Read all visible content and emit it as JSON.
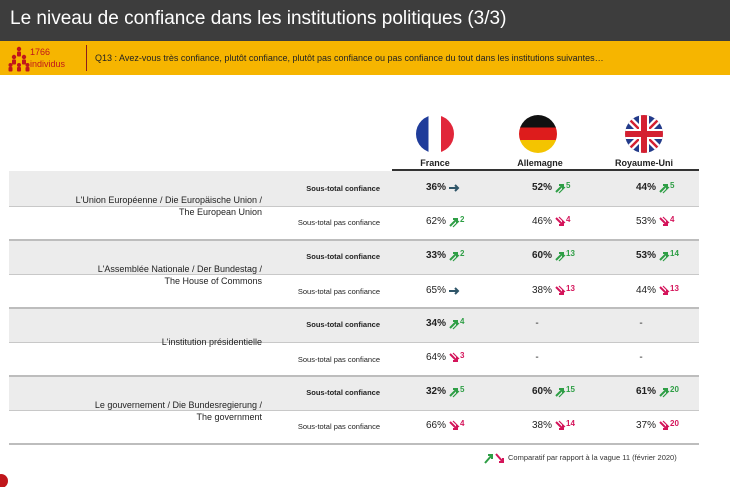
{
  "header": {
    "title": "Le niveau de confiance dans les institutions politiques (3/3)",
    "base_count": "1766",
    "base_unit": "individus",
    "question": "Q13 : Avez-vous très confiance, plutôt confiance, plutôt pas confiance ou pas confiance du tout dans les institutions suivantes…"
  },
  "colors": {
    "title_bar": "#3d3d3d",
    "question_bar": "#f6b500",
    "up_arrow": "#2e9e45",
    "down_arrow": "#d4145a",
    "stable_arrow": "#2f5568",
    "group_background": "#ececec"
  },
  "countries": [
    {
      "name": "France",
      "flag_icon": "france-flag-icon"
    },
    {
      "name": "Allemagne",
      "flag_icon": "germany-flag-icon"
    },
    {
      "name": "Royaume-Uni",
      "flag_icon": "uk-flag-icon"
    }
  ],
  "footnote": "Comparatif par rapport à la vague 11 (février 2020)",
  "chart_data": {
    "type": "table",
    "columns": [
      "France",
      "Allemagne",
      "Royaume-Uni"
    ],
    "measures": [
      "Sous-total confiance",
      "Sous-total pas confiance"
    ],
    "groups": [
      {
        "institution": [
          "L'Union Européenne / Die Europäische Union /",
          "The European Union"
        ],
        "rows": [
          {
            "measure": "Sous-total confiance",
            "cells": [
              {
                "value": "36%",
                "trend": "stable",
                "delta": ""
              },
              {
                "value": "52%",
                "trend": "up",
                "delta": "5"
              },
              {
                "value": "44%",
                "trend": "up",
                "delta": "5"
              }
            ]
          },
          {
            "measure": "Sous-total pas confiance",
            "cells": [
              {
                "value": "62%",
                "trend": "up",
                "delta": "2"
              },
              {
                "value": "46%",
                "trend": "down",
                "delta": "4"
              },
              {
                "value": "53%",
                "trend": "down",
                "delta": "4"
              }
            ]
          }
        ]
      },
      {
        "institution": [
          "L'Assemblée Nationale / Der Bundestag /",
          "The House of Commons"
        ],
        "rows": [
          {
            "measure": "Sous-total confiance",
            "cells": [
              {
                "value": "33%",
                "trend": "up",
                "delta": "2"
              },
              {
                "value": "60%",
                "trend": "up",
                "delta": "13"
              },
              {
                "value": "53%",
                "trend": "up",
                "delta": "14"
              }
            ]
          },
          {
            "measure": "Sous-total pas confiance",
            "cells": [
              {
                "value": "65%",
                "trend": "stable",
                "delta": ""
              },
              {
                "value": "38%",
                "trend": "down",
                "delta": "13"
              },
              {
                "value": "44%",
                "trend": "down",
                "delta": "13"
              }
            ]
          }
        ]
      },
      {
        "institution": [
          "L'institution présidentielle"
        ],
        "rows": [
          {
            "measure": "Sous-total confiance",
            "cells": [
              {
                "value": "34%",
                "trend": "up",
                "delta": "4"
              },
              {
                "value": "-",
                "trend": "none",
                "delta": ""
              },
              {
                "value": "-",
                "trend": "none",
                "delta": ""
              }
            ]
          },
          {
            "measure": "Sous-total pas confiance",
            "cells": [
              {
                "value": "64%",
                "trend": "down",
                "delta": "3"
              },
              {
                "value": "-",
                "trend": "none",
                "delta": ""
              },
              {
                "value": "-",
                "trend": "none",
                "delta": ""
              }
            ]
          }
        ]
      },
      {
        "institution": [
          "Le gouvernement / Die Bundesregierung /",
          "The government"
        ],
        "rows": [
          {
            "measure": "Sous-total confiance",
            "cells": [
              {
                "value": "32%",
                "trend": "up",
                "delta": "5"
              },
              {
                "value": "60%",
                "trend": "up",
                "delta": "15"
              },
              {
                "value": "61%",
                "trend": "up",
                "delta": "20"
              }
            ]
          },
          {
            "measure": "Sous-total pas confiance",
            "cells": [
              {
                "value": "66%",
                "trend": "down",
                "delta": "4"
              },
              {
                "value": "38%",
                "trend": "down",
                "delta": "14"
              },
              {
                "value": "37%",
                "trend": "down",
                "delta": "20"
              }
            ]
          }
        ]
      }
    ]
  }
}
